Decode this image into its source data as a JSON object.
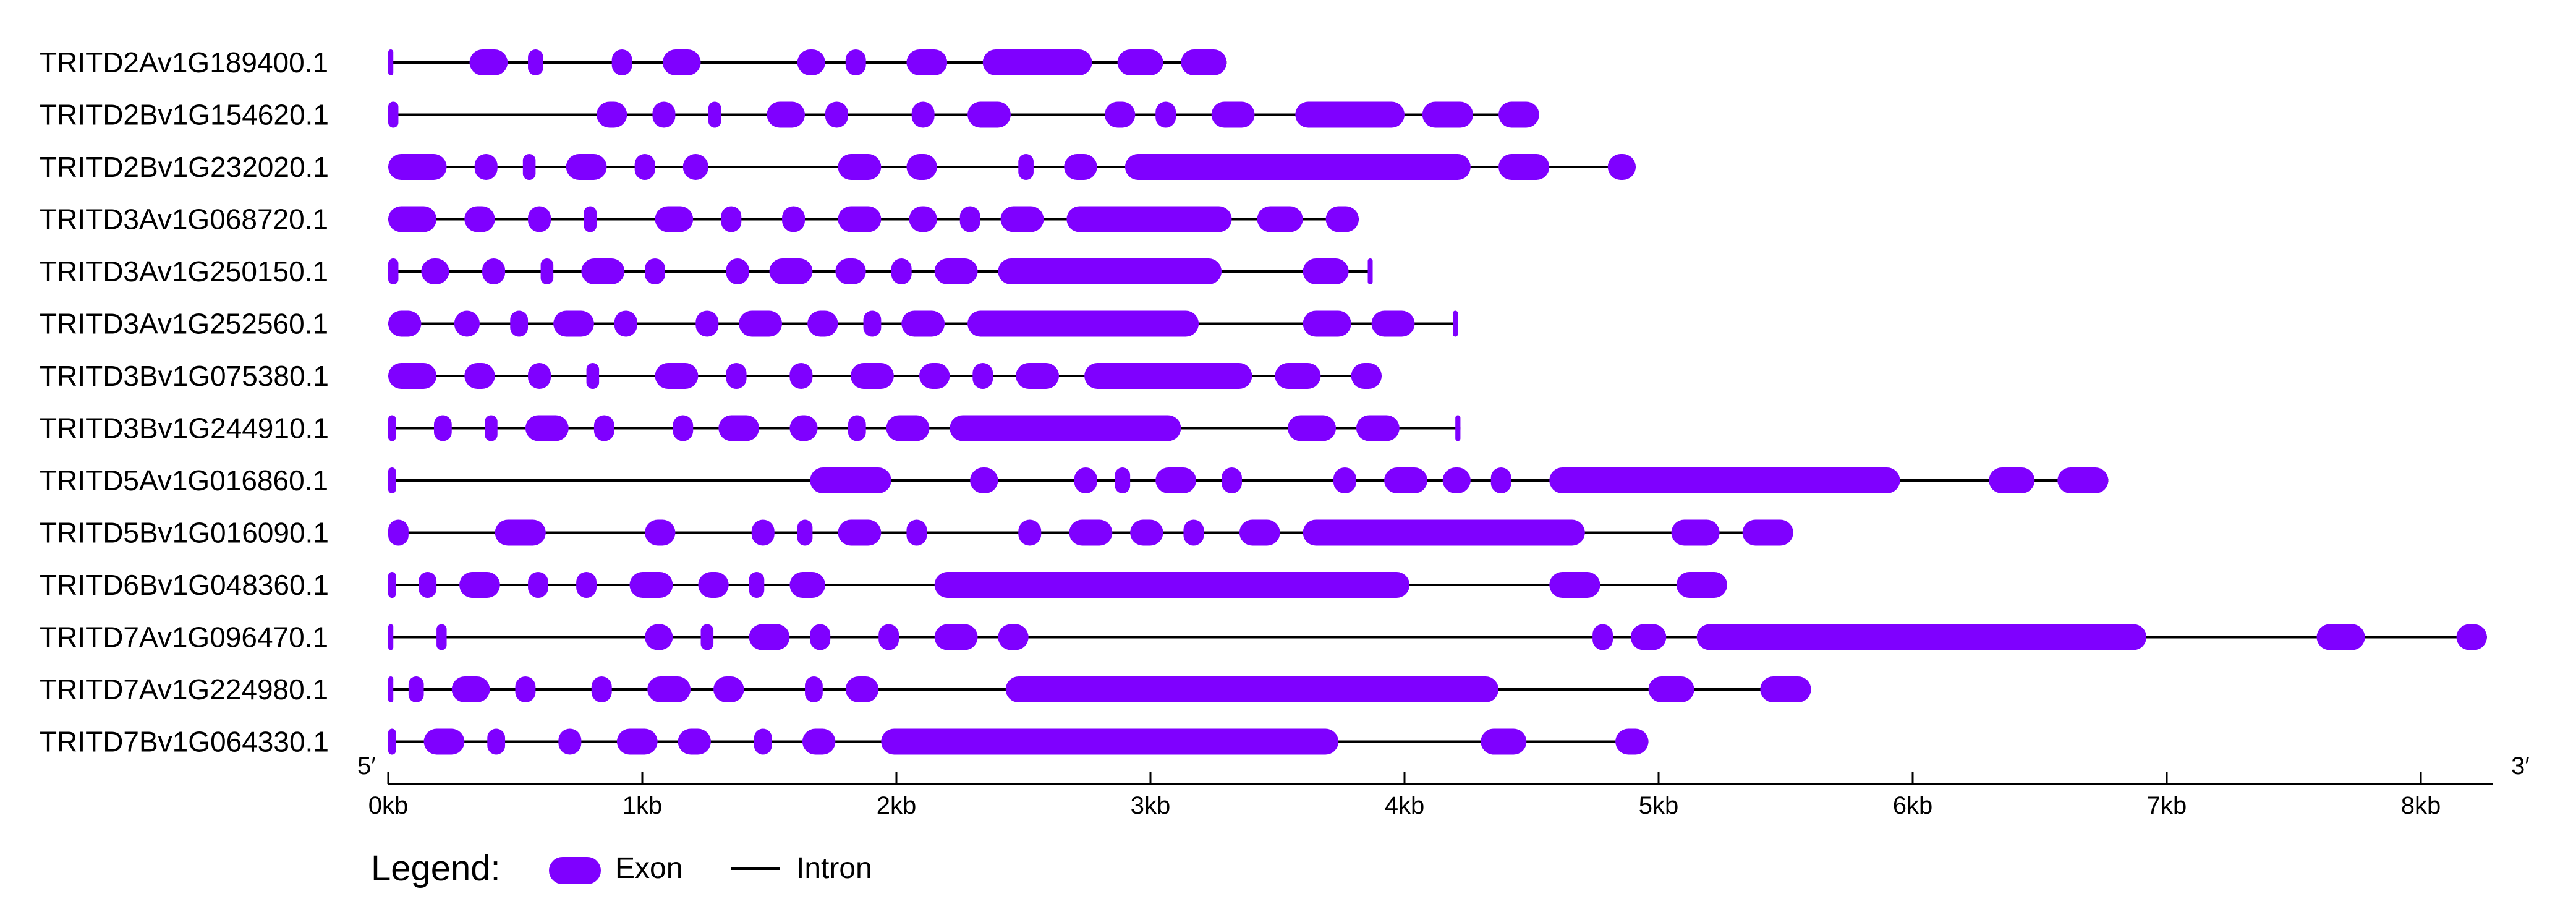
{
  "colors": {
    "exon": "#7F00FF",
    "intron": "#000000"
  },
  "chart_data": {
    "type": "gene_structure",
    "units": "kb",
    "xlim": [
      0,
      8.26
    ],
    "axis": {
      "start_label": "5′",
      "end_label": "3′",
      "ticks": [
        {
          "value": 0,
          "label": "0kb"
        },
        {
          "value": 1,
          "label": "1kb"
        },
        {
          "value": 2,
          "label": "2kb"
        },
        {
          "value": 3,
          "label": "3kb"
        },
        {
          "value": 4,
          "label": "4kb"
        },
        {
          "value": 5,
          "label": "5kb"
        },
        {
          "value": 6,
          "label": "6kb"
        },
        {
          "value": 7,
          "label": "7kb"
        },
        {
          "value": 8,
          "label": "8kb"
        }
      ]
    },
    "legend": {
      "title": "Legend:",
      "items": [
        {
          "kind": "exon",
          "label": "Exon"
        },
        {
          "kind": "intron",
          "label": "Intron"
        }
      ]
    },
    "genes": [
      {
        "name": "TRITD2Av1G189400.1",
        "length": 3.3,
        "exons": [
          [
            0.0,
            0.02
          ],
          [
            0.32,
            0.47
          ],
          [
            0.55,
            0.61
          ],
          [
            0.88,
            0.96
          ],
          [
            1.08,
            1.23
          ],
          [
            1.61,
            1.72
          ],
          [
            1.8,
            1.88
          ],
          [
            2.04,
            2.2
          ],
          [
            2.34,
            2.77
          ],
          [
            2.87,
            3.05
          ],
          [
            3.12,
            3.3
          ]
        ]
      },
      {
        "name": "TRITD2Bv1G154620.1",
        "length": 4.53,
        "exons": [
          [
            0.0,
            0.04
          ],
          [
            0.82,
            0.94
          ],
          [
            1.04,
            1.13
          ],
          [
            1.26,
            1.31
          ],
          [
            1.49,
            1.64
          ],
          [
            1.72,
            1.81
          ],
          [
            2.06,
            2.15
          ],
          [
            2.28,
            2.45
          ],
          [
            2.82,
            2.94
          ],
          [
            3.02,
            3.1
          ],
          [
            3.24,
            3.41
          ],
          [
            3.57,
            4.0
          ],
          [
            4.07,
            4.27
          ],
          [
            4.37,
            4.53
          ]
        ]
      },
      {
        "name": "TRITD2Bv1G232020.1",
        "length": 4.91,
        "exons": [
          [
            0.0,
            0.23
          ],
          [
            0.34,
            0.43
          ],
          [
            0.53,
            0.58
          ],
          [
            0.7,
            0.86
          ],
          [
            0.97,
            1.05
          ],
          [
            1.16,
            1.26
          ],
          [
            1.77,
            1.94
          ],
          [
            2.04,
            2.16
          ],
          [
            2.48,
            2.54
          ],
          [
            2.66,
            2.79
          ],
          [
            2.9,
            4.26
          ],
          [
            4.37,
            4.57
          ],
          [
            4.8,
            4.91
          ]
        ]
      },
      {
        "name": "TRITD3Av1G068720.1",
        "length": 3.82,
        "exons": [
          [
            0.0,
            0.19
          ],
          [
            0.3,
            0.42
          ],
          [
            0.55,
            0.64
          ],
          [
            0.77,
            0.82
          ],
          [
            1.05,
            1.2
          ],
          [
            1.31,
            1.39
          ],
          [
            1.55,
            1.64
          ],
          [
            1.77,
            1.94
          ],
          [
            2.05,
            2.16
          ],
          [
            2.25,
            2.33
          ],
          [
            2.41,
            2.58
          ],
          [
            2.67,
            3.32
          ],
          [
            3.42,
            3.6
          ],
          [
            3.69,
            3.82
          ]
        ]
      },
      {
        "name": "TRITD3Av1G250150.1",
        "length": 3.87,
        "exons": [
          [
            0.0,
            0.04
          ],
          [
            0.13,
            0.24
          ],
          [
            0.37,
            0.46
          ],
          [
            0.6,
            0.65
          ],
          [
            0.76,
            0.93
          ],
          [
            1.01,
            1.09
          ],
          [
            1.33,
            1.42
          ],
          [
            1.5,
            1.67
          ],
          [
            1.76,
            1.88
          ],
          [
            1.98,
            2.06
          ],
          [
            2.15,
            2.32
          ],
          [
            2.4,
            3.28
          ],
          [
            3.6,
            3.78
          ],
          [
            3.86,
            3.87
          ]
        ]
      },
      {
        "name": "TRITD3Av1G252560.1",
        "length": 4.21,
        "exons": [
          [
            0.0,
            0.13
          ],
          [
            0.26,
            0.36
          ],
          [
            0.48,
            0.55
          ],
          [
            0.65,
            0.81
          ],
          [
            0.89,
            0.98
          ],
          [
            1.21,
            1.3
          ],
          [
            1.38,
            1.55
          ],
          [
            1.65,
            1.77
          ],
          [
            1.87,
            1.94
          ],
          [
            2.02,
            2.19
          ],
          [
            2.28,
            3.19
          ],
          [
            3.6,
            3.79
          ],
          [
            3.87,
            4.04
          ],
          [
            4.19,
            4.21
          ]
        ]
      },
      {
        "name": "TRITD3Bv1G075380.1",
        "length": 3.91,
        "exons": [
          [
            0.0,
            0.19
          ],
          [
            0.3,
            0.42
          ],
          [
            0.55,
            0.64
          ],
          [
            0.78,
            0.83
          ],
          [
            1.05,
            1.22
          ],
          [
            1.33,
            1.41
          ],
          [
            1.58,
            1.67
          ],
          [
            1.82,
            1.99
          ],
          [
            2.09,
            2.21
          ],
          [
            2.3,
            2.38
          ],
          [
            2.47,
            2.64
          ],
          [
            2.74,
            3.4
          ],
          [
            3.49,
            3.67
          ],
          [
            3.79,
            3.91
          ]
        ]
      },
      {
        "name": "TRITD3Bv1G244910.1",
        "length": 4.22,
        "exons": [
          [
            0.0,
            0.03
          ],
          [
            0.18,
            0.25
          ],
          [
            0.38,
            0.43
          ],
          [
            0.54,
            0.71
          ],
          [
            0.81,
            0.89
          ],
          [
            1.12,
            1.2
          ],
          [
            1.3,
            1.46
          ],
          [
            1.58,
            1.69
          ],
          [
            1.81,
            1.88
          ],
          [
            1.96,
            2.13
          ],
          [
            2.21,
            3.12
          ],
          [
            3.54,
            3.73
          ],
          [
            3.81,
            3.98
          ],
          [
            4.2,
            4.22
          ]
        ]
      },
      {
        "name": "TRITD5Av1G016860.1",
        "length": 6.77,
        "exons": [
          [
            0.0,
            0.03
          ],
          [
            1.66,
            1.98
          ],
          [
            2.29,
            2.4
          ],
          [
            2.7,
            2.79
          ],
          [
            2.86,
            2.92
          ],
          [
            3.02,
            3.18
          ],
          [
            3.28,
            3.36
          ],
          [
            3.72,
            3.81
          ],
          [
            3.92,
            4.09
          ],
          [
            4.15,
            4.26
          ],
          [
            4.34,
            4.42
          ],
          [
            4.57,
            5.95
          ],
          [
            6.3,
            6.48
          ],
          [
            6.57,
            6.77
          ]
        ]
      },
      {
        "name": "TRITD5Bv1G016090.1",
        "length": 5.53,
        "exons": [
          [
            0.0,
            0.08
          ],
          [
            0.42,
            0.62
          ],
          [
            1.01,
            1.13
          ],
          [
            1.43,
            1.52
          ],
          [
            1.61,
            1.67
          ],
          [
            1.77,
            1.94
          ],
          [
            2.04,
            2.12
          ],
          [
            2.48,
            2.57
          ],
          [
            2.68,
            2.85
          ],
          [
            2.92,
            3.05
          ],
          [
            3.13,
            3.21
          ],
          [
            3.35,
            3.51
          ],
          [
            3.6,
            4.71
          ],
          [
            5.05,
            5.24
          ],
          [
            5.33,
            5.53
          ]
        ]
      },
      {
        "name": "TRITD6Bv1G048360.1",
        "length": 5.27,
        "exons": [
          [
            0.0,
            0.03
          ],
          [
            0.12,
            0.19
          ],
          [
            0.28,
            0.44
          ],
          [
            0.55,
            0.63
          ],
          [
            0.74,
            0.82
          ],
          [
            0.95,
            1.12
          ],
          [
            1.22,
            1.34
          ],
          [
            1.42,
            1.48
          ],
          [
            1.58,
            1.72
          ],
          [
            2.15,
            4.02
          ],
          [
            4.57,
            4.77
          ],
          [
            5.07,
            5.27
          ]
        ]
      },
      {
        "name": "TRITD7Av1G096470.1",
        "length": 8.26,
        "exons": [
          [
            0.0,
            0.02
          ],
          [
            0.19,
            0.23
          ],
          [
            1.01,
            1.12
          ],
          [
            1.23,
            1.28
          ],
          [
            1.42,
            1.58
          ],
          [
            1.66,
            1.74
          ],
          [
            1.93,
            2.01
          ],
          [
            2.15,
            2.32
          ],
          [
            2.4,
            2.52
          ],
          [
            4.74,
            4.82
          ],
          [
            4.89,
            5.03
          ],
          [
            5.15,
            6.92
          ],
          [
            7.59,
            7.78
          ],
          [
            8.14,
            8.26
          ]
        ]
      },
      {
        "name": "TRITD7Av1G224980.1",
        "length": 5.6,
        "exons": [
          [
            0.0,
            0.02
          ],
          [
            0.08,
            0.14
          ],
          [
            0.25,
            0.4
          ],
          [
            0.5,
            0.58
          ],
          [
            0.8,
            0.88
          ],
          [
            1.02,
            1.19
          ],
          [
            1.28,
            1.4
          ],
          [
            1.64,
            1.71
          ],
          [
            1.8,
            1.93
          ],
          [
            2.43,
            4.37
          ],
          [
            4.96,
            5.14
          ],
          [
            5.4,
            5.6
          ]
        ]
      },
      {
        "name": "TRITD7Bv1G064330.1",
        "length": 4.96,
        "exons": [
          [
            0.0,
            0.03
          ],
          [
            0.14,
            0.3
          ],
          [
            0.39,
            0.46
          ],
          [
            0.67,
            0.76
          ],
          [
            0.9,
            1.06
          ],
          [
            1.14,
            1.27
          ],
          [
            1.44,
            1.51
          ],
          [
            1.63,
            1.76
          ],
          [
            1.94,
            3.74
          ],
          [
            4.3,
            4.48
          ],
          [
            4.83,
            4.96
          ]
        ]
      }
    ]
  }
}
